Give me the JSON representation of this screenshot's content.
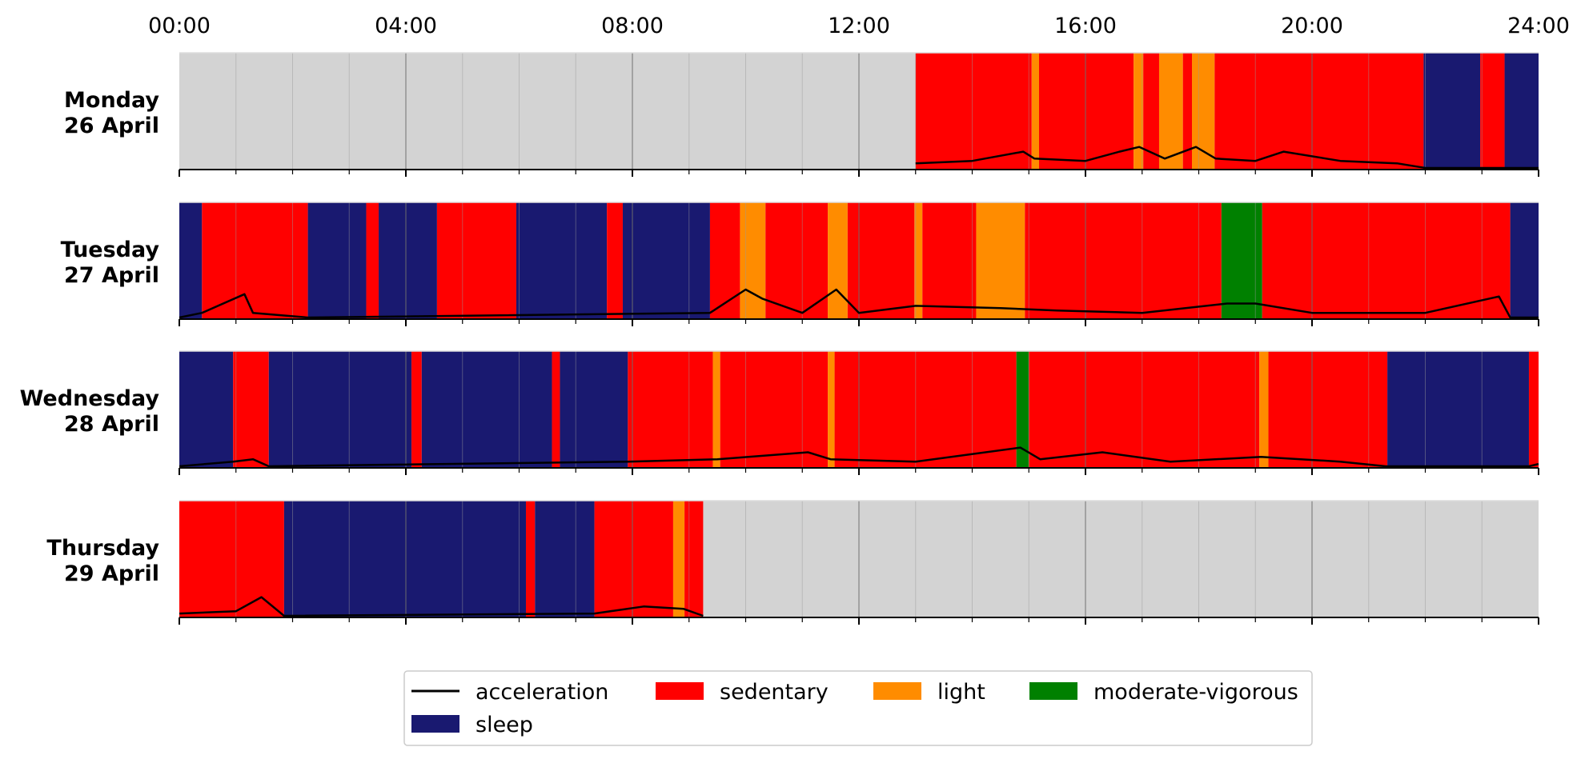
{
  "chart_data": {
    "type": "area",
    "xlabel": "",
    "ylabel": "",
    "x_ticks": [
      "00:00",
      "04:00",
      "08:00",
      "12:00",
      "16:00",
      "20:00",
      "24:00"
    ],
    "x_range_hours": [
      0,
      24
    ],
    "grid": true,
    "legend_position": "bottom-center",
    "colors": {
      "no_data": "#d3d3d3",
      "sleep": "#191970",
      "sedentary": "#ff0000",
      "light": "#ff8c00",
      "moderate_vigorous": "#008000",
      "acceleration": "#000000"
    },
    "legend": [
      {
        "key": "acceleration",
        "label": "acceleration",
        "kind": "line"
      },
      {
        "key": "sedentary",
        "label": "sedentary",
        "kind": "patch"
      },
      {
        "key": "light",
        "label": "light",
        "kind": "patch"
      },
      {
        "key": "moderate_vigorous",
        "label": "moderate-vigorous",
        "kind": "patch"
      },
      {
        "key": "sleep",
        "label": "sleep",
        "kind": "patch"
      }
    ],
    "days": [
      {
        "line1": "Monday",
        "line2": "26 April",
        "segments": [
          {
            "start": 0,
            "end": 13.0,
            "state": "no_data"
          },
          {
            "start": 13.0,
            "end": 15.05,
            "state": "sedentary"
          },
          {
            "start": 15.05,
            "end": 15.18,
            "state": "light"
          },
          {
            "start": 15.18,
            "end": 16.85,
            "state": "sedentary"
          },
          {
            "start": 16.85,
            "end": 17.02,
            "state": "light"
          },
          {
            "start": 17.02,
            "end": 17.3,
            "state": "sedentary"
          },
          {
            "start": 17.3,
            "end": 17.72,
            "state": "light"
          },
          {
            "start": 17.72,
            "end": 17.88,
            "state": "sedentary"
          },
          {
            "start": 17.88,
            "end": 18.28,
            "state": "light"
          },
          {
            "start": 18.28,
            "end": 21.97,
            "state": "sedentary"
          },
          {
            "start": 21.97,
            "end": 22.97,
            "state": "sleep"
          },
          {
            "start": 22.97,
            "end": 23.4,
            "state": "sedentary"
          },
          {
            "start": 23.4,
            "end": 24.0,
            "state": "sleep"
          }
        ],
        "acceleration": [
          {
            "t": 13.0,
            "v": 0.02
          },
          {
            "t": 14.0,
            "v": 0.03
          },
          {
            "t": 14.9,
            "v": 0.07
          },
          {
            "t": 15.1,
            "v": 0.04
          },
          {
            "t": 16.0,
            "v": 0.03
          },
          {
            "t": 16.6,
            "v": 0.07
          },
          {
            "t": 16.95,
            "v": 0.09
          },
          {
            "t": 17.4,
            "v": 0.04
          },
          {
            "t": 17.95,
            "v": 0.09
          },
          {
            "t": 18.3,
            "v": 0.04
          },
          {
            "t": 19.0,
            "v": 0.03
          },
          {
            "t": 19.5,
            "v": 0.07
          },
          {
            "t": 20.5,
            "v": 0.03
          },
          {
            "t": 21.5,
            "v": 0.02
          },
          {
            "t": 22.0,
            "v": 0.0
          },
          {
            "t": 24.0,
            "v": 0.0
          }
        ]
      },
      {
        "line1": "Tuesday",
        "line2": "27 April",
        "segments": [
          {
            "start": 0,
            "end": 0.4,
            "state": "sleep"
          },
          {
            "start": 0.4,
            "end": 2.27,
            "state": "sedentary"
          },
          {
            "start": 2.27,
            "end": 3.3,
            "state": "sleep"
          },
          {
            "start": 3.3,
            "end": 3.52,
            "state": "sedentary"
          },
          {
            "start": 3.52,
            "end": 4.55,
            "state": "sleep"
          },
          {
            "start": 4.55,
            "end": 5.95,
            "state": "sedentary"
          },
          {
            "start": 5.95,
            "end": 7.55,
            "state": "sleep"
          },
          {
            "start": 7.55,
            "end": 7.83,
            "state": "sedentary"
          },
          {
            "start": 7.83,
            "end": 9.37,
            "state": "sleep"
          },
          {
            "start": 9.37,
            "end": 9.9,
            "state": "sedentary"
          },
          {
            "start": 9.9,
            "end": 10.35,
            "state": "light"
          },
          {
            "start": 10.35,
            "end": 11.45,
            "state": "sedentary"
          },
          {
            "start": 11.45,
            "end": 11.8,
            "state": "light"
          },
          {
            "start": 11.8,
            "end": 12.98,
            "state": "sedentary"
          },
          {
            "start": 12.98,
            "end": 13.12,
            "state": "light"
          },
          {
            "start": 13.12,
            "end": 14.07,
            "state": "sedentary"
          },
          {
            "start": 14.07,
            "end": 14.93,
            "state": "light"
          },
          {
            "start": 14.93,
            "end": 18.4,
            "state": "sedentary"
          },
          {
            "start": 18.4,
            "end": 19.12,
            "state": "moderate_vigorous"
          },
          {
            "start": 19.12,
            "end": 23.5,
            "state": "sedentary"
          },
          {
            "start": 23.5,
            "end": 24.0,
            "state": "sleep"
          }
        ],
        "acceleration": [
          {
            "t": 0.0,
            "v": 0.0
          },
          {
            "t": 0.4,
            "v": 0.02
          },
          {
            "t": 1.15,
            "v": 0.1
          },
          {
            "t": 1.3,
            "v": 0.02
          },
          {
            "t": 2.27,
            "v": 0.0
          },
          {
            "t": 9.37,
            "v": 0.02
          },
          {
            "t": 10.0,
            "v": 0.12
          },
          {
            "t": 10.3,
            "v": 0.08
          },
          {
            "t": 11.0,
            "v": 0.02
          },
          {
            "t": 11.6,
            "v": 0.12
          },
          {
            "t": 12.0,
            "v": 0.02
          },
          {
            "t": 13.0,
            "v": 0.05
          },
          {
            "t": 14.5,
            "v": 0.04
          },
          {
            "t": 15.5,
            "v": 0.03
          },
          {
            "t": 17.0,
            "v": 0.02
          },
          {
            "t": 18.5,
            "v": 0.06
          },
          {
            "t": 19.0,
            "v": 0.06
          },
          {
            "t": 20.0,
            "v": 0.02
          },
          {
            "t": 22.0,
            "v": 0.02
          },
          {
            "t": 23.3,
            "v": 0.09
          },
          {
            "t": 23.5,
            "v": 0.0
          },
          {
            "t": 24.0,
            "v": 0.0
          }
        ]
      },
      {
        "line1": "Wednesday",
        "line2": "28 April",
        "segments": [
          {
            "start": 0,
            "end": 0.95,
            "state": "sleep"
          },
          {
            "start": 0.95,
            "end": 1.58,
            "state": "sedentary"
          },
          {
            "start": 1.58,
            "end": 4.1,
            "state": "sleep"
          },
          {
            "start": 4.1,
            "end": 4.28,
            "state": "sedentary"
          },
          {
            "start": 4.28,
            "end": 6.58,
            "state": "sleep"
          },
          {
            "start": 6.58,
            "end": 6.72,
            "state": "sedentary"
          },
          {
            "start": 6.72,
            "end": 7.92,
            "state": "sleep"
          },
          {
            "start": 7.92,
            "end": 9.42,
            "state": "sedentary"
          },
          {
            "start": 9.42,
            "end": 9.55,
            "state": "light"
          },
          {
            "start": 9.55,
            "end": 11.45,
            "state": "sedentary"
          },
          {
            "start": 11.45,
            "end": 11.57,
            "state": "light"
          },
          {
            "start": 11.57,
            "end": 14.78,
            "state": "sedentary"
          },
          {
            "start": 14.78,
            "end": 15.0,
            "state": "moderate_vigorous"
          },
          {
            "start": 15.0,
            "end": 19.07,
            "state": "sedentary"
          },
          {
            "start": 19.07,
            "end": 19.23,
            "state": "light"
          },
          {
            "start": 19.23,
            "end": 21.33,
            "state": "sedentary"
          },
          {
            "start": 21.33,
            "end": 23.83,
            "state": "sleep"
          },
          {
            "start": 23.83,
            "end": 24.0,
            "state": "sedentary"
          }
        ],
        "acceleration": [
          {
            "t": 0.0,
            "v": 0.0
          },
          {
            "t": 0.95,
            "v": 0.02
          },
          {
            "t": 1.3,
            "v": 0.03
          },
          {
            "t": 1.58,
            "v": 0.0
          },
          {
            "t": 7.92,
            "v": 0.02
          },
          {
            "t": 9.5,
            "v": 0.03
          },
          {
            "t": 11.1,
            "v": 0.06
          },
          {
            "t": 11.5,
            "v": 0.03
          },
          {
            "t": 13.0,
            "v": 0.02
          },
          {
            "t": 14.85,
            "v": 0.08
          },
          {
            "t": 15.2,
            "v": 0.03
          },
          {
            "t": 16.3,
            "v": 0.06
          },
          {
            "t": 17.5,
            "v": 0.02
          },
          {
            "t": 19.1,
            "v": 0.04
          },
          {
            "t": 20.5,
            "v": 0.02
          },
          {
            "t": 21.3,
            "v": 0.0
          },
          {
            "t": 23.83,
            "v": 0.0
          },
          {
            "t": 24.0,
            "v": 0.01
          }
        ]
      },
      {
        "line1": "Thursday",
        "line2": "29 April",
        "segments": [
          {
            "start": 0,
            "end": 1.85,
            "state": "sedentary"
          },
          {
            "start": 1.85,
            "end": 6.12,
            "state": "sleep"
          },
          {
            "start": 6.12,
            "end": 6.28,
            "state": "sedentary"
          },
          {
            "start": 6.28,
            "end": 7.33,
            "state": "sleep"
          },
          {
            "start": 7.33,
            "end": 8.72,
            "state": "sedentary"
          },
          {
            "start": 8.72,
            "end": 8.92,
            "state": "light"
          },
          {
            "start": 8.92,
            "end": 9.25,
            "state": "sedentary"
          },
          {
            "start": 9.25,
            "end": 24.0,
            "state": "no_data"
          }
        ],
        "acceleration": [
          {
            "t": 0.0,
            "v": 0.01
          },
          {
            "t": 1.0,
            "v": 0.02
          },
          {
            "t": 1.45,
            "v": 0.08
          },
          {
            "t": 1.85,
            "v": 0.0
          },
          {
            "t": 7.33,
            "v": 0.01
          },
          {
            "t": 8.2,
            "v": 0.04
          },
          {
            "t": 8.9,
            "v": 0.03
          },
          {
            "t": 9.25,
            "v": 0.0
          }
        ]
      }
    ]
  }
}
